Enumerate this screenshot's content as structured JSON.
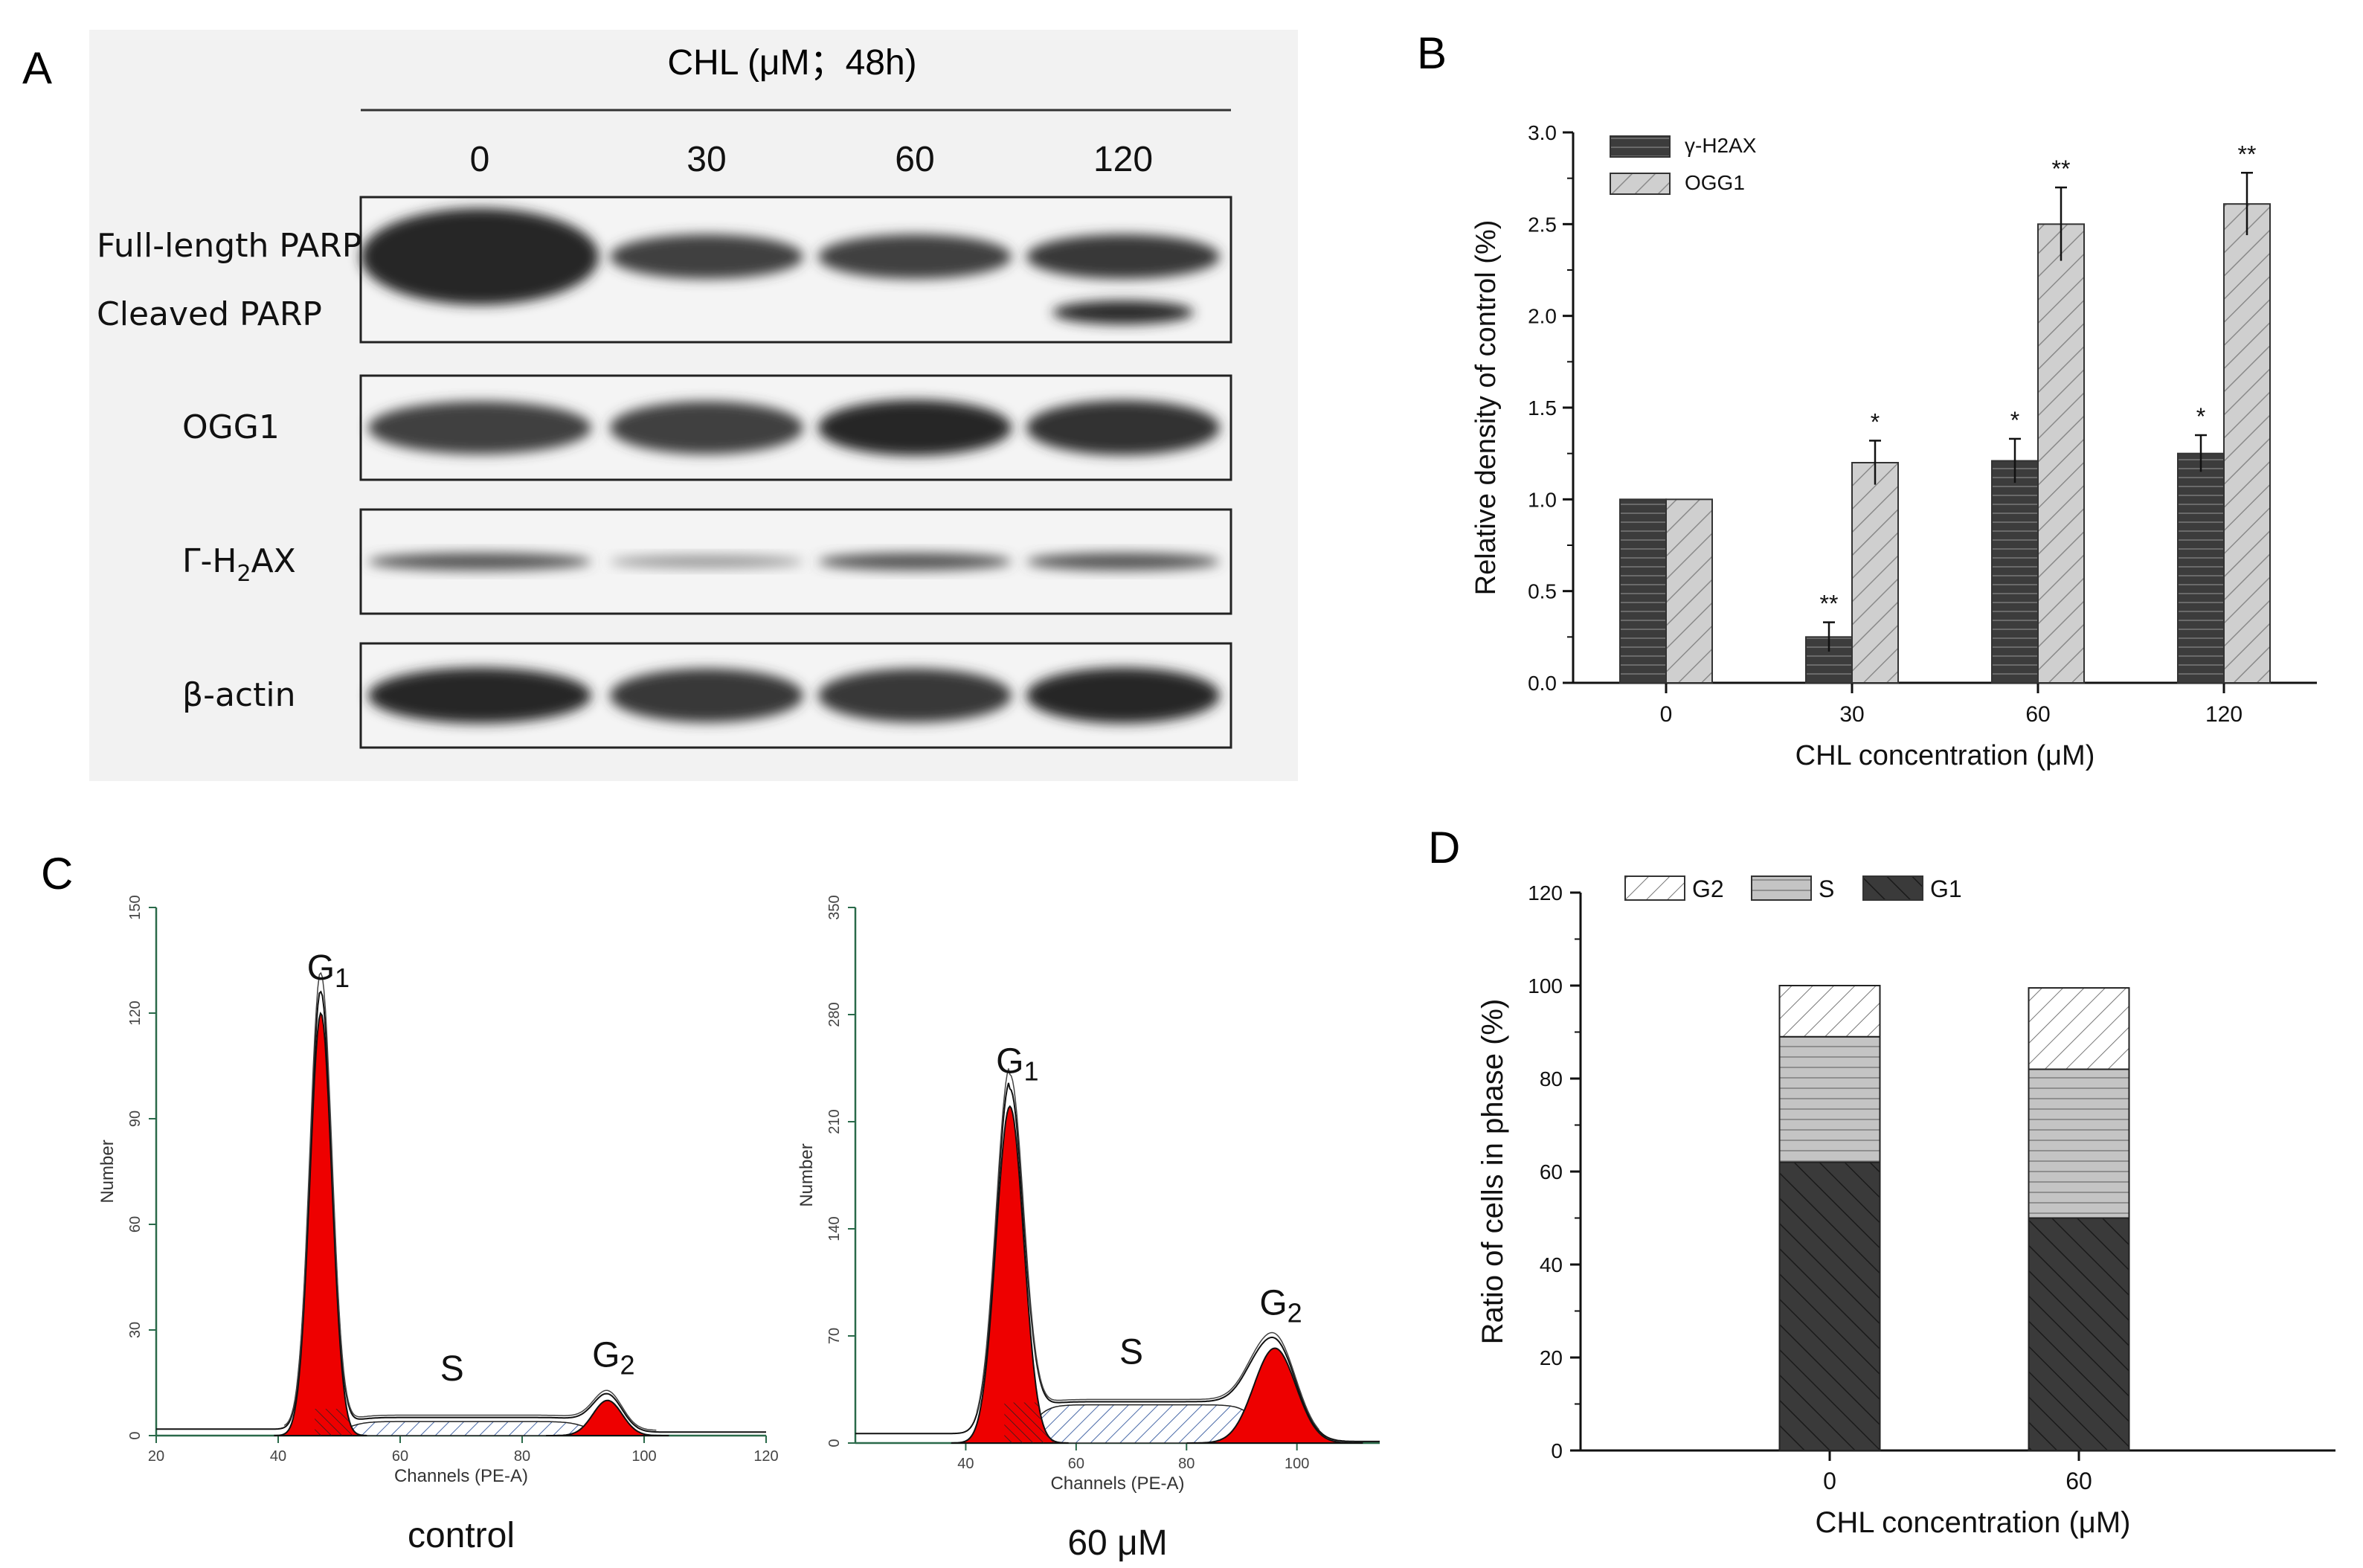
{
  "panel_labels": {
    "a": "A",
    "b": "B",
    "c": "C",
    "d": "D"
  },
  "panel_a": {
    "treatment_header": "CHL (μM；48h)",
    "lanes": [
      "0",
      "30",
      "60",
      "120"
    ],
    "rows": [
      {
        "label": "Full-length PARP",
        "label2": "Cleaved PARP",
        "intensity": [
          1.0,
          0.85,
          0.85,
          0.9
        ],
        "cleaved": [
          0,
          0,
          0,
          0.8
        ]
      },
      {
        "label": "OGG1",
        "intensity": [
          0.85,
          0.85,
          1.0,
          0.95
        ]
      },
      {
        "label": "Γ-H2AX",
        "label_base": "Γ-H",
        "label_sub": "2",
        "label_tail": "AX",
        "intensity": [
          0.7,
          0.25,
          0.7,
          0.7
        ]
      },
      {
        "label": "β-actin",
        "intensity": [
          1.0,
          0.9,
          0.9,
          1.0
        ]
      }
    ]
  },
  "chart_data": [
    {
      "id": "B",
      "type": "bar",
      "title": "",
      "xlabel": "CHL concentration (μM)",
      "ylabel": "Relative density of control (%)",
      "categories": [
        "0",
        "30",
        "60",
        "120"
      ],
      "ylim": [
        0,
        3.0
      ],
      "yticks": [
        "0.0",
        "0.5",
        "1.0",
        "1.5",
        "2.0",
        "2.5",
        "3.0"
      ],
      "legend_position": "top-left",
      "series": [
        {
          "name": "γ-H2AX",
          "values": [
            1.0,
            0.25,
            1.21,
            1.25
          ],
          "errors": [
            0,
            0.08,
            0.12,
            0.1
          ],
          "sig": [
            "",
            "**",
            "*",
            "*"
          ],
          "fill": "#3c3c3c"
        },
        {
          "name": "OGG1",
          "values": [
            1.0,
            1.2,
            2.5,
            2.61
          ],
          "errors": [
            0,
            0.12,
            0.2,
            0.17
          ],
          "sig": [
            "",
            "*",
            "**",
            "**"
          ],
          "fill": "#c8c8c8"
        }
      ]
    },
    {
      "id": "C1",
      "type": "line",
      "title": "",
      "xlabel": "Channels (PE-A)",
      "ylabel": "Number",
      "caption": "control",
      "xlim": [
        20,
        120
      ],
      "ylim": [
        0,
        150
      ],
      "xticks": [
        "20",
        "40",
        "60",
        "80",
        "100",
        "120"
      ],
      "yticks": [
        "0",
        "30",
        "60",
        "90",
        "120",
        "150"
      ],
      "g1": {
        "mu": 47,
        "sd": 1.8,
        "amp": 120
      },
      "g2": {
        "mu": 94,
        "sd": 2.4,
        "amp": 10
      },
      "s": {
        "level": 4
      },
      "phase_labels": {
        "g1": "G",
        "g1_sub": "1",
        "s": "S",
        "g2": "G",
        "g2_sub": "2"
      }
    },
    {
      "id": "C2",
      "type": "line",
      "title": "",
      "xlabel": "Channels (PE-A)",
      "ylabel": "Number",
      "caption": "60 μM",
      "xlim": [
        20,
        115
      ],
      "ylim": [
        0,
        350
      ],
      "xticks": [
        "40",
        "60",
        "80",
        "100"
      ],
      "yticks": [
        "0",
        "70",
        "140",
        "210",
        "280",
        "350"
      ],
      "g1": {
        "mu": 48,
        "sd": 2.5,
        "amp": 220
      },
      "g2": {
        "mu": 96,
        "sd": 3.8,
        "amp": 62
      },
      "s": {
        "level": 25
      },
      "phase_labels": {
        "g1": "G",
        "g1_sub": "1",
        "s": "S",
        "g2": "G",
        "g2_sub": "2"
      }
    },
    {
      "id": "D",
      "type": "bar",
      "title": "",
      "xlabel": "CHL concentration (μM)",
      "ylabel": "Ratio of cells in phase (%)",
      "categories": [
        "0",
        "60"
      ],
      "ylim": [
        0,
        120
      ],
      "yticks": [
        "0",
        "20",
        "40",
        "60",
        "80",
        "100",
        "120"
      ],
      "legend_position": "top-left",
      "series": [
        {
          "name": "G1",
          "values": [
            62,
            50
          ],
          "fill": "#3a3a3a"
        },
        {
          "name": "S",
          "values": [
            27,
            32
          ],
          "fill": "#c4c4c4"
        },
        {
          "name": "G2",
          "values": [
            11,
            17.5
          ],
          "fill": "#ffffff"
        }
      ],
      "legend_order": [
        "G2",
        "S",
        "G1"
      ]
    }
  ]
}
